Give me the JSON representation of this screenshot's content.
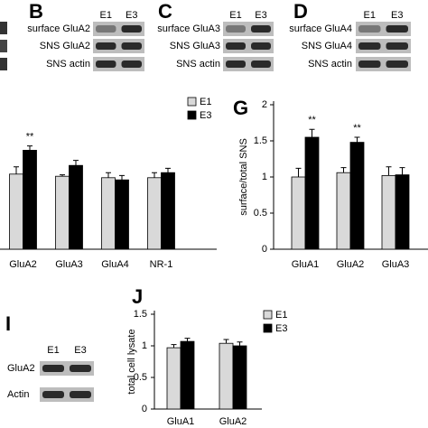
{
  "blots": [
    {
      "letter": "B",
      "lanes": [
        "E1",
        "E3"
      ],
      "rows": [
        "surface GluA2",
        "SNS GluA2",
        "SNS actin"
      ]
    },
    {
      "letter": "C",
      "lanes": [
        "E1",
        "E3"
      ],
      "rows": [
        "surface GluA3",
        "SNS GluA3",
        "SNS actin"
      ]
    },
    {
      "letter": "D",
      "lanes": [
        "E1",
        "E3"
      ],
      "rows": [
        "surface GluA4",
        "SNS GluA4",
        "SNS actin"
      ]
    },
    {
      "letter": "I",
      "lanes": [
        "E1",
        "E3"
      ],
      "rows": [
        "GluA2",
        "Actin"
      ]
    }
  ],
  "chart_data": [
    {
      "type": "bar",
      "categories": [
        "GluA2",
        "GluA3",
        "GluA4",
        "NR-1"
      ],
      "series": [
        {
          "name": "E1",
          "color": "#d9d9d9",
          "values": [
            1.04,
            1.01,
            0.99,
            0.99
          ],
          "errors": [
            0.1,
            0.02,
            0.07,
            0.07
          ]
        },
        {
          "name": "E3",
          "color": "#000000",
          "values": [
            1.37,
            1.16,
            0.96,
            1.06
          ],
          "errors": [
            0.06,
            0.07,
            0.06,
            0.06
          ]
        }
      ],
      "significance": [
        "**",
        null,
        null,
        null
      ],
      "ylim": [
        0,
        2
      ]
    },
    {
      "type": "bar",
      "panel": "G",
      "y_label": "surface/total SNS",
      "categories": [
        "GluA1",
        "GluA2",
        "GluA3"
      ],
      "series": [
        {
          "name": "E1",
          "color": "#d9d9d9",
          "values": [
            1.0,
            1.06,
            1.02
          ],
          "errors": [
            0.12,
            0.07,
            0.12
          ]
        },
        {
          "name": "E3",
          "color": "#000000",
          "values": [
            1.55,
            1.48,
            1.03
          ],
          "errors": [
            0.11,
            0.07,
            0.1
          ]
        }
      ],
      "significance": [
        "**",
        "**",
        null
      ],
      "ylim": [
        0,
        2
      ],
      "yticks": [
        0,
        0.5,
        1,
        1.5,
        2
      ]
    },
    {
      "type": "bar",
      "panel": "J",
      "y_label": "total cell lysate",
      "categories": [
        "GluA1",
        "GluA2"
      ],
      "series": [
        {
          "name": "E1",
          "color": "#d9d9d9",
          "values": [
            0.97,
            1.04
          ],
          "errors": [
            0.05,
            0.06
          ]
        },
        {
          "name": "E3",
          "color": "#000000",
          "values": [
            1.07,
            1.0
          ],
          "errors": [
            0.05,
            0.06
          ]
        }
      ],
      "ylim": [
        0,
        1.5
      ],
      "yticks": [
        0,
        0.5,
        1,
        1.5
      ]
    }
  ]
}
